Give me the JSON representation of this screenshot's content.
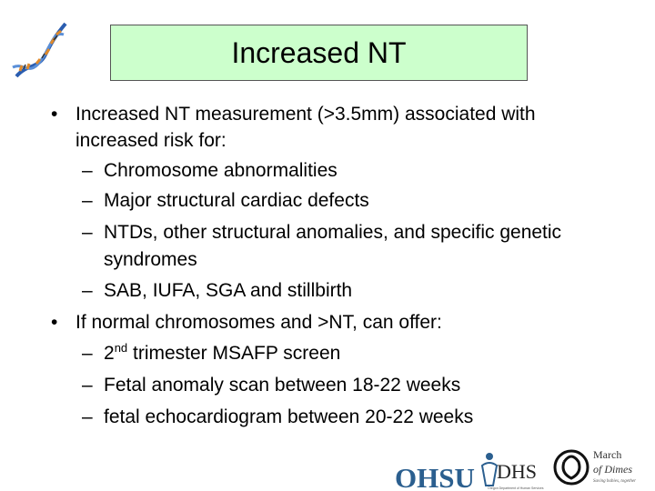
{
  "slide": {
    "title": "Increased NT",
    "b1_text_a": "Increased NT measurement (>3.5mm) associated with",
    "b1_text_b": "increased risk for:",
    "b1_subs": [
      "Chromosome abnormalities",
      "Major structural cardiac defects",
      "NTDs, other structural anomalies, and specific genetic",
      "syndromes",
      "SAB, IUFA, SGA and stillbirth"
    ],
    "b2_text": "If normal chromosomes and >NT, can offer:",
    "b2_sub1_pre": "2",
    "b2_sub1_sup": "nd",
    "b2_sub1_post": " trimester MSAFP screen",
    "b2_sub2": "Fetal anomaly scan between 18-22 weeks",
    "b2_sub3": "fetal echocardiogram between 20-22 weeks",
    "bullet_glyph": "•",
    "dash_glyph": "–"
  },
  "logos": {
    "ohsu": "OHSU",
    "dhs": "DHS",
    "dhs_sub": "Oregon Department of Human Services",
    "mod_line1": "March",
    "mod_line2": "of Dimes",
    "mod_tag": "Saving babies, together"
  },
  "colors": {
    "title_bg": "#ccffcc",
    "dna_blue": "#2a5db0",
    "dna_orange": "#e08a2a",
    "ohsu_blue": "#2b5f8f"
  },
  "icons": {
    "dna": "dna-helix-icon"
  }
}
